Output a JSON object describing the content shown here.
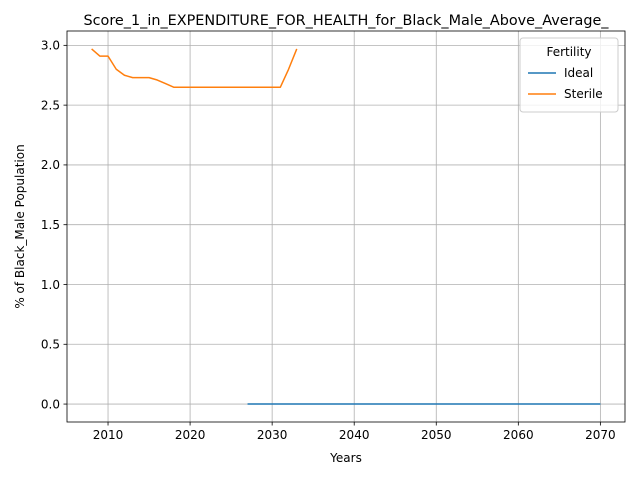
{
  "chart_data": {
    "type": "line",
    "title": "Score_1_in_EXPENDITURE_FOR_HEALTH_for_Black_Male_Above_Average_",
    "xlabel": "Years",
    "ylabel": "% of Black_Male Population",
    "xlim": [
      2005,
      2073
    ],
    "ylim": [
      -0.15,
      3.12
    ],
    "xticks": [
      2010,
      2020,
      2030,
      2040,
      2050,
      2060,
      2070
    ],
    "yticks": [
      0.0,
      0.5,
      1.0,
      1.5,
      2.0,
      2.5,
      3.0
    ],
    "ytick_labels": [
      "0.0",
      "0.5",
      "1.0",
      "1.5",
      "2.0",
      "2.5",
      "3.0"
    ],
    "grid": true,
    "legend": {
      "title": "Fertility",
      "placement": "top-right"
    },
    "series": [
      {
        "name": "Ideal",
        "color": "#1f77b4",
        "x": [
          2027,
          2030,
          2035,
          2040,
          2045,
          2050,
          2055,
          2060,
          2065,
          2070
        ],
        "y": [
          0,
          0,
          0,
          0,
          0,
          0,
          0,
          0,
          0,
          0
        ]
      },
      {
        "name": "Sterile",
        "color": "#ff7f0e",
        "x": [
          2008,
          2009,
          2010,
          2011,
          2012,
          2013,
          2014,
          2015,
          2016,
          2017,
          2018,
          2019,
          2020,
          2021,
          2022,
          2023,
          2024,
          2025,
          2026,
          2027,
          2028,
          2029,
          2030,
          2031,
          2032,
          2033
        ],
        "y": [
          2.97,
          2.91,
          2.91,
          2.8,
          2.75,
          2.73,
          2.73,
          2.73,
          2.71,
          2.68,
          2.65,
          2.65,
          2.65,
          2.65,
          2.65,
          2.65,
          2.65,
          2.65,
          2.65,
          2.65,
          2.65,
          2.65,
          2.65,
          2.65,
          2.8,
          2.97
        ]
      }
    ]
  }
}
